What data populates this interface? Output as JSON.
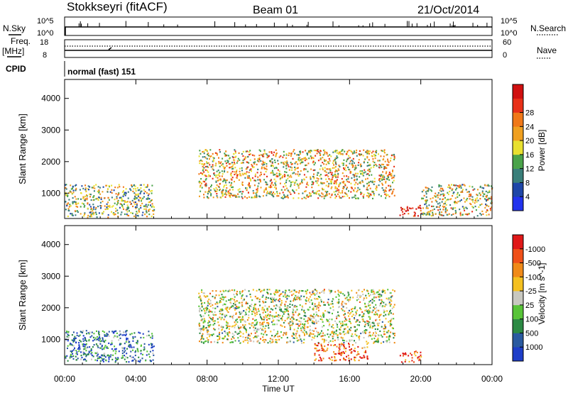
{
  "header": {
    "station": "Stokkseyri (fitACF)",
    "beam": "Beam 01",
    "date": "21/Oct/2014"
  },
  "top_panels": {
    "nsky_label": "N.Sky",
    "nsky_tick_hi": "10^5",
    "nsky_tick_lo": "10^0",
    "nsearch_label": "N.Search",
    "freq_label": "Freq.",
    "freq_unit": "[MHz]",
    "freq_tick_hi": "18",
    "freq_tick_lo": "8",
    "nave_tick_hi": "60",
    "nave_tick_lo": "0",
    "nave_label": "Nave",
    "cpid_label": "CPID",
    "cpid_value": "normal (fast) 151"
  },
  "chart_data": [
    {
      "type": "heatmap",
      "name_field": "power",
      "ylabel": "Slant Range [km]",
      "yticks": [
        1000,
        2000,
        3000,
        4000
      ],
      "ylim": [
        200,
        4600
      ],
      "xlabel": "Time UT",
      "xticks": [
        "00:00",
        "04:00",
        "08:00",
        "12:00",
        "16:00",
        "20:00",
        "00:00"
      ],
      "xlim_hours": [
        0,
        24
      ],
      "colorbar": {
        "label": "Power [dB]",
        "ticks": [
          "4",
          "8",
          "12",
          "16",
          "20",
          "24",
          "28"
        ],
        "colors": [
          "#2233ee",
          "#1e46a8",
          "#3a7f7a",
          "#4aa34a",
          "#e8e030",
          "#f0a020",
          "#f07818",
          "#e83018",
          "#d01010"
        ]
      },
      "features": [
        {
          "t0": 0.0,
          "t1": 5.0,
          "r0": 250,
          "r1": 1300,
          "level": 0.45
        },
        {
          "t0": 7.5,
          "t1": 18.5,
          "r0": 850,
          "r1": 2400,
          "level": 0.55
        },
        {
          "t0": 18.8,
          "t1": 20.0,
          "r0": 300,
          "r1": 650,
          "level": 0.95
        },
        {
          "t0": 20.0,
          "t1": 24.0,
          "r0": 300,
          "r1": 1300,
          "level": 0.5
        }
      ]
    },
    {
      "type": "heatmap",
      "name_field": "velocity",
      "ylabel": "Slant Range [km]",
      "yticks": [
        1000,
        2000,
        3000,
        4000
      ],
      "ylim": [
        200,
        4600
      ],
      "xlabel": "Time UT",
      "xticks": [
        "00:00",
        "04:00",
        "08:00",
        "12:00",
        "16:00",
        "20:00",
        "00:00"
      ],
      "xlim_hours": [
        0,
        24
      ],
      "colorbar": {
        "label": "Velocity [m s^-1]",
        "ticks": [
          "1000",
          "500",
          "100",
          "25",
          "-25",
          "-100",
          "-500",
          "-1000"
        ],
        "colors": [
          "#1e3ec8",
          "#2a5aa0",
          "#2c8a44",
          "#58c438",
          "#c8c8c0",
          "#f4c020",
          "#f08a18",
          "#f05018",
          "#e01818"
        ]
      },
      "features": [
        {
          "t0": 0.0,
          "t1": 5.0,
          "r0": 300,
          "r1": 1300,
          "level": 0.2
        },
        {
          "t0": 7.5,
          "t1": 18.5,
          "r0": 900,
          "r1": 2600,
          "level": 0.5
        },
        {
          "t0": 14.0,
          "t1": 17.0,
          "r0": 350,
          "r1": 900,
          "level": 0.85
        },
        {
          "t0": 18.8,
          "t1": 20.0,
          "r0": 300,
          "r1": 650,
          "level": 0.85
        }
      ]
    }
  ]
}
